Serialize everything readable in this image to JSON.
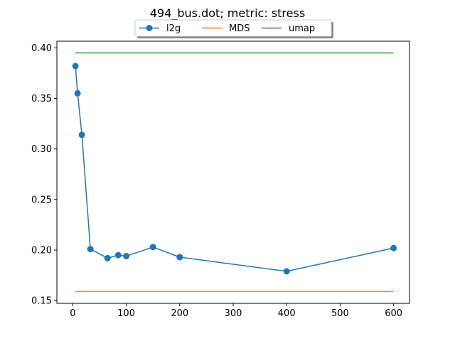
{
  "chart_data": {
    "type": "line",
    "title": "494_bus.dot; metric: stress",
    "xlabel": "",
    "ylabel": "",
    "xlim": [
      -29.75,
      629.75
    ],
    "ylim": [
      0.1473,
      0.4066
    ],
    "xticks": [
      0,
      100,
      200,
      300,
      400,
      500,
      600
    ],
    "yticks": [
      0.15,
      0.2,
      0.25,
      0.3,
      0.35,
      0.4
    ],
    "xtick_labels": [
      "0",
      "100",
      "200",
      "300",
      "400",
      "500",
      "600"
    ],
    "ytick_labels": [
      "0.15",
      "0.20",
      "0.25",
      "0.30",
      "0.35",
      "0.40"
    ],
    "grid": false,
    "legend_position": "top-center",
    "series": [
      {
        "name": "l2g",
        "color": "#1f77b4",
        "marker": "circle",
        "x": [
          5,
          9,
          17,
          33,
          65,
          85,
          100,
          150,
          200,
          400,
          600
        ],
        "y": [
          0.382,
          0.355,
          0.314,
          0.201,
          0.192,
          0.195,
          0.194,
          0.203,
          0.193,
          0.179,
          0.202
        ]
      },
      {
        "name": "MDS",
        "color": "#ff7f0e",
        "marker": "none",
        "x": [
          5,
          600
        ],
        "y": [
          0.159,
          0.159
        ]
      },
      {
        "name": "umap",
        "color": "#2ca02c",
        "marker": "none",
        "x": [
          5,
          600
        ],
        "y": [
          0.395,
          0.395
        ]
      }
    ]
  }
}
